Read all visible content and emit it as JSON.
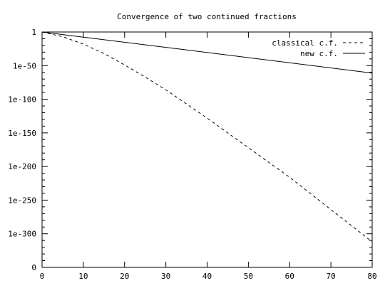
{
  "chart_data": {
    "type": "line",
    "title": "Convergence of two continued fractions",
    "xlabel": "",
    "ylabel": "",
    "y_scale": "log10",
    "xlim": [
      0,
      80
    ],
    "ylim_exponent": [
      -350,
      0
    ],
    "x_ticks": [
      "0",
      "10",
      "20",
      "30",
      "40",
      "50",
      "60",
      "70",
      "80"
    ],
    "y_ticks": [
      {
        "exp": 0,
        "label": "1"
      },
      {
        "exp": -50,
        "label": "1e-50"
      },
      {
        "exp": -100,
        "label": "1e-100"
      },
      {
        "exp": -150,
        "label": "1e-150"
      },
      {
        "exp": -200,
        "label": "1e-200"
      },
      {
        "exp": -250,
        "label": "1e-250"
      },
      {
        "exp": -300,
        "label": "1e-300"
      },
      {
        "exp": -350,
        "label": "0"
      }
    ],
    "grid": false,
    "legend_position": "top-right",
    "series": [
      {
        "name": "classical c.f.",
        "style": "dashed",
        "color": "#000000",
        "x": [
          0,
          5,
          10,
          15,
          20,
          25,
          30,
          35,
          40,
          45,
          50,
          55,
          60,
          65,
          70,
          75,
          80
        ],
        "y_exponent": [
          0,
          -7,
          -18,
          -32,
          -49,
          -67,
          -86,
          -107,
          -128,
          -150,
          -172,
          -194,
          -216,
          -240,
          -264,
          -288,
          -312
        ]
      },
      {
        "name": "new c.f.",
        "style": "solid",
        "color": "#000000",
        "x": [
          0,
          80
        ],
        "y_exponent": [
          0,
          -61
        ]
      }
    ]
  }
}
